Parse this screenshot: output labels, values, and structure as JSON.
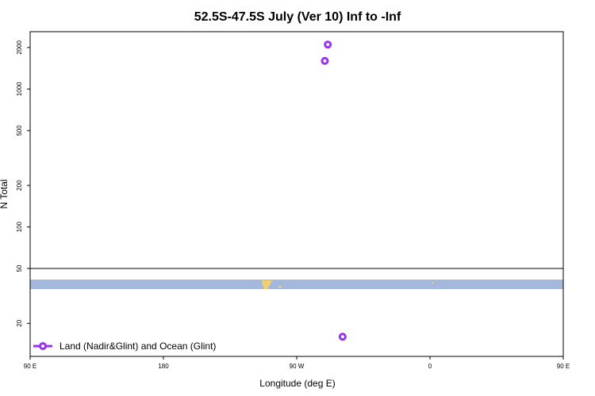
{
  "chart_data": {
    "type": "scatter",
    "title": "52.5S-47.5S July (Ver 10)   Inf to -Inf",
    "xlabel": "Longitude (deg E)",
    "ylabel": "N Total",
    "x_scale": "longitude",
    "y_scale": "log",
    "xlim": [
      90,
      450
    ],
    "ylim": [
      12,
      2500
    ],
    "x_ticks": [
      {
        "value": 90,
        "label": "90 E"
      },
      {
        "value": 180,
        "label": "180"
      },
      {
        "value": 270,
        "label": "90 W"
      },
      {
        "value": 360,
        "label": "0"
      },
      {
        "value": 450,
        "label": "90 E"
      },
      {
        "value": 540,
        "label": "180"
      }
    ],
    "y_ticks": [
      {
        "value": 20,
        "label": "20"
      },
      {
        "value": 50,
        "label": "50"
      },
      {
        "value": 100,
        "label": "100"
      },
      {
        "value": 200,
        "label": "200"
      },
      {
        "value": 500,
        "label": "500"
      },
      {
        "value": 1000,
        "label": "1000"
      },
      {
        "value": 2000,
        "label": "2000"
      }
    ],
    "series": [
      {
        "name": "Land (Nadir&Glint) and Ocean (Glint)",
        "color": "#9b30f0",
        "marker": "circle-open",
        "x": [
          291,
          289,
          301
        ],
        "y": [
          2100,
          1600,
          16
        ]
      }
    ],
    "legend": {
      "position": "bottom-left"
    },
    "map_strip": {
      "ocean_color": "#a3b8dc",
      "land_color": "#f2cf6e"
    }
  }
}
